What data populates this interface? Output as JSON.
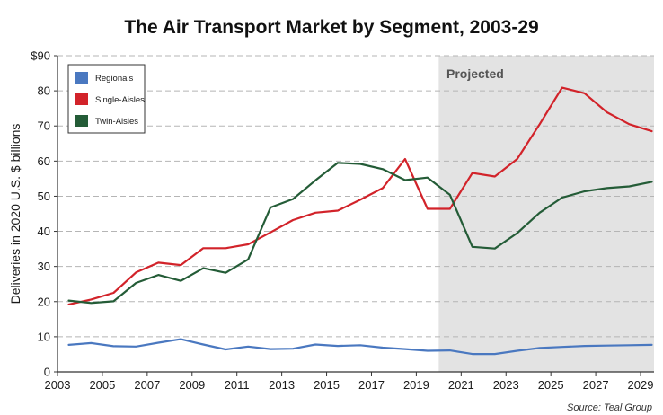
{
  "chart_data": {
    "type": "line",
    "title": "The Air Transport Market by Segment, 2003-29",
    "ylabel": "Deliveries in 2020 U.S. $ billions",
    "xlabel": "",
    "xlim": [
      2003,
      2029.6
    ],
    "ylim": [
      0,
      90
    ],
    "x_ticks": [
      2003,
      2005,
      2007,
      2009,
      2011,
      2013,
      2015,
      2017,
      2019,
      2021,
      2023,
      2025,
      2027,
      2029
    ],
    "x_tick_labels": [
      "2003",
      "2005",
      "2007",
      "2009",
      "2011",
      "2013",
      "2015",
      "2017",
      "2019",
      "2021",
      "2023",
      "2025",
      "2027",
      "2029"
    ],
    "y_ticks": [
      0,
      10,
      20,
      30,
      40,
      50,
      60,
      70,
      80,
      90
    ],
    "y_tick_labels": [
      "0",
      "10",
      "20",
      "30",
      "40",
      "50",
      "60",
      "70",
      "80",
      "$90"
    ],
    "grid": "horizontal dashed",
    "projected": {
      "label": "Projected",
      "start": 2020,
      "end": 2029.6,
      "color": "#e3e3e3"
    },
    "legend": {
      "position": "top-left"
    },
    "x": [
      2003.5,
      2004.5,
      2005.5,
      2006.5,
      2007.5,
      2008.5,
      2009.5,
      2010.5,
      2011.5,
      2012.5,
      2013.5,
      2014.5,
      2015.5,
      2016.5,
      2017.5,
      2018.5,
      2019.5,
      2020.5,
      2021.5,
      2022.5,
      2023.5,
      2024.5,
      2025.5,
      2026.5,
      2027.5,
      2028.5,
      2029.5
    ],
    "series": [
      {
        "name": "Regionals",
        "color": "#4a78c0",
        "values": [
          7.7,
          8.2,
          7.3,
          7.2,
          8.3,
          9.3,
          7.8,
          6.4,
          7.2,
          6.5,
          6.6,
          7.8,
          7.4,
          7.6,
          6.9,
          6.5,
          6.0,
          6.1,
          5.1,
          5.1,
          6.0,
          6.8,
          7.1,
          7.4,
          7.5,
          7.6,
          7.7
        ]
      },
      {
        "name": "Single-Aisles",
        "color": "#d2232a",
        "values": [
          19.2,
          20.6,
          22.5,
          28.3,
          31.1,
          30.4,
          35.2,
          35.2,
          36.3,
          39.7,
          43.2,
          45.3,
          45.9,
          49.0,
          52.3,
          60.6,
          46.4,
          46.4,
          56.6,
          55.6,
          60.6,
          70.5,
          80.9,
          79.3,
          73.9,
          70.5,
          68.5
        ]
      },
      {
        "name": "Twin-Aisles",
        "color": "#245c37",
        "values": [
          20.3,
          19.6,
          20.1,
          25.3,
          27.6,
          25.9,
          29.5,
          28.2,
          32.0,
          46.8,
          49.2,
          54.5,
          59.5,
          59.2,
          57.7,
          54.6,
          55.3,
          50.4,
          35.6,
          35.1,
          39.5,
          45.3,
          49.6,
          51.4,
          52.3,
          52.8,
          54.1
        ]
      }
    ],
    "source": "Source: Teal Group"
  }
}
